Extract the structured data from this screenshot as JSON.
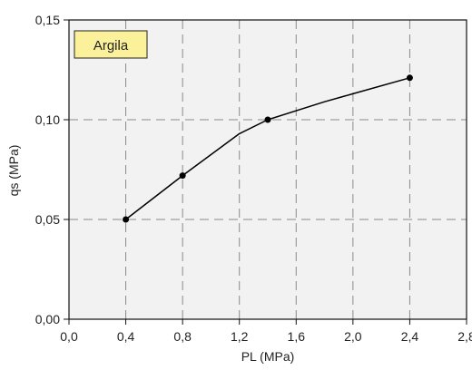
{
  "chart_data": {
    "type": "line",
    "xlabel": "PL (MPa)",
    "ylabel": "qs (MPa)",
    "xlim": [
      0.0,
      2.8
    ],
    "ylim": [
      0.0,
      0.15
    ],
    "xticks": [
      "0,0",
      "0,4",
      "0,8",
      "1,2",
      "1,6",
      "2,0",
      "2,4",
      "2,8"
    ],
    "xtick_values": [
      0.0,
      0.4,
      0.8,
      1.2,
      1.6,
      2.0,
      2.4,
      2.8
    ],
    "yticks": [
      "0,00",
      "0,05",
      "0,10",
      "0,15"
    ],
    "ytick_values": [
      0.0,
      0.05,
      0.1,
      0.15
    ],
    "grid": true,
    "legend_position": "top-left",
    "series": [
      {
        "name": "Argila",
        "x": [
          0.4,
          0.8,
          1.4,
          2.4
        ],
        "y": [
          0.05,
          0.072,
          0.1,
          0.121
        ]
      }
    ],
    "curve_path": {
      "x": [
        0.4,
        0.8,
        1.2,
        1.4,
        1.8,
        2.0,
        2.4
      ],
      "y": [
        0.05,
        0.072,
        0.093,
        0.1,
        0.109,
        0.113,
        0.121
      ]
    },
    "colors": {
      "plot_background": "#f2f2f2",
      "grid": "#8a8a8a",
      "line": "#000000",
      "marker": "#000000",
      "legend_fill": "#fbf19a",
      "legend_border": "#222222"
    }
  }
}
